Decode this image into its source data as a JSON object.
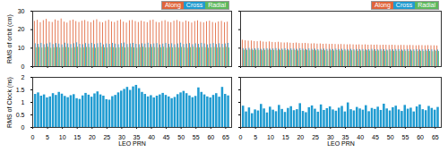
{
  "chart_data": [
    {
      "type": "bar",
      "y_label": "RMS of orbit (cm)",
      "legend": "top-right",
      "tick_labels": "y",
      "xlim": [
        0,
        67
      ],
      "xticks": [
        0,
        5,
        10,
        15,
        20,
        25,
        30,
        35,
        40,
        45,
        50,
        55,
        60,
        65
      ],
      "ylim": [
        0,
        30
      ],
      "yticks": [
        0,
        10,
        20,
        30
      ],
      "x": [
        1,
        2,
        3,
        4,
        5,
        6,
        7,
        8,
        9,
        10,
        11,
        12,
        13,
        14,
        15,
        16,
        17,
        18,
        19,
        20,
        21,
        22,
        23,
        24,
        25,
        26,
        27,
        28,
        29,
        30,
        31,
        32,
        33,
        34,
        35,
        36,
        37,
        38,
        39,
        40,
        41,
        42,
        43,
        44,
        45,
        46,
        47,
        48,
        49,
        50,
        51,
        52,
        53,
        54,
        55,
        56,
        57,
        58,
        59,
        60,
        61,
        62,
        63,
        64,
        65,
        66
      ],
      "series": [
        {
          "name": "Along",
          "color": "#e0643a",
          "values": [
            24.5,
            25.1,
            23.8,
            24.9,
            25.6,
            24.2,
            23.9,
            25.3,
            24.7,
            25.8,
            24.1,
            23.6,
            24.8,
            25.2,
            24.4,
            23.9,
            24.6,
            25.0,
            24.3,
            23.8,
            24.9,
            25.4,
            24.0,
            23.7,
            24.5,
            25.1,
            24.2,
            23.9,
            24.7,
            25.3,
            24.1,
            23.6,
            24.8,
            25.0,
            24.4,
            23.9,
            24.6,
            24.2,
            23.8,
            24.9,
            25.2,
            24.0,
            23.7,
            24.5,
            24.9,
            24.1,
            23.8,
            24.6,
            25.0,
            24.3,
            23.9,
            24.7,
            24.2,
            23.6,
            24.4,
            24.8,
            24.0,
            23.7,
            24.3,
            24.6,
            23.9,
            23.5,
            24.2,
            24.5,
            23.8,
            24.1
          ]
        },
        {
          "name": "Cross",
          "color": "#1f9bd1",
          "values": [
            12.4,
            12.1,
            12.6,
            11.9,
            12.3,
            12.8,
            12.0,
            12.5,
            12.2,
            11.8,
            12.7,
            12.3,
            12.0,
            12.4,
            12.9,
            12.1,
            11.9,
            12.5,
            12.2,
            12.6,
            12.0,
            12.4,
            12.7,
            11.8,
            12.3,
            12.1,
            12.6,
            12.2,
            11.9,
            12.5,
            12.8,
            12.0,
            12.3,
            12.6,
            12.1,
            11.9,
            12.4,
            12.2,
            12.7,
            12.0,
            12.3,
            12.5,
            11.8,
            12.2,
            12.6,
            12.1,
            12.4,
            11.9,
            12.3,
            12.7,
            12.0,
            12.2,
            12.5,
            11.9,
            12.4,
            12.1,
            12.6,
            12.3,
            11.8,
            12.2,
            12.5,
            12.0,
            12.4,
            12.1,
            12.3,
            12.6
          ]
        },
        {
          "name": "Radial",
          "color": "#5cb85c",
          "values": [
            10.2,
            10.4,
            10.1,
            10.3,
            10.5,
            10.0,
            10.2,
            10.4,
            10.1,
            10.3,
            10.4,
            10.2,
            10.0,
            10.3,
            10.5,
            10.1,
            10.2,
            10.4,
            10.3,
            10.1,
            10.0,
            10.3,
            10.5,
            10.2,
            10.1,
            10.4,
            10.3,
            10.0,
            10.2,
            10.5,
            10.1,
            10.3,
            10.4,
            10.2,
            10.0,
            10.3,
            10.5,
            10.1,
            10.2,
            10.4,
            10.3,
            10.1,
            10.2,
            10.5,
            10.0,
            10.4,
            10.2,
            10.3,
            10.1,
            10.4,
            10.2,
            10.0,
            10.3,
            10.5,
            10.1,
            10.2,
            10.4,
            10.3,
            10.0,
            10.2,
            10.4,
            10.1,
            10.3,
            10.2,
            10.5,
            10.1
          ]
        }
      ]
    },
    {
      "type": "bar",
      "legend": "top-right",
      "tick_labels": false,
      "xlim": [
        0,
        67
      ],
      "xticks": [
        0,
        5,
        10,
        15,
        20,
        25,
        30,
        35,
        40,
        45,
        50,
        55,
        60,
        65
      ],
      "ylim": [
        0,
        30
      ],
      "yticks": [
        0,
        10,
        20,
        30
      ],
      "x": [
        1,
        2,
        3,
        4,
        5,
        6,
        7,
        8,
        9,
        10,
        11,
        12,
        13,
        14,
        15,
        16,
        17,
        18,
        19,
        20,
        21,
        22,
        23,
        24,
        25,
        26,
        27,
        28,
        29,
        30,
        31,
        32,
        33,
        34,
        35,
        36,
        37,
        38,
        39,
        40,
        41,
        42,
        43,
        44,
        45,
        46,
        47,
        48,
        49,
        50,
        51,
        52,
        53,
        54,
        55,
        56,
        57,
        58,
        59,
        60,
        61,
        62,
        63,
        64,
        65,
        66
      ],
      "series": [
        {
          "name": "Along",
          "color": "#e0643a",
          "values": [
            14.3,
            14.0,
            13.8,
            13.9,
            13.6,
            13.5,
            13.7,
            13.3,
            13.2,
            13.4,
            13.1,
            13.0,
            13.2,
            12.9,
            12.8,
            12.9,
            12.7,
            12.6,
            12.8,
            12.5,
            12.5,
            12.6,
            12.4,
            12.3,
            12.4,
            12.2,
            12.3,
            12.1,
            12.2,
            12.0,
            12.1,
            12.0,
            11.9,
            12.0,
            11.9,
            11.8,
            11.9,
            11.8,
            11.7,
            11.8,
            11.7,
            11.8,
            11.6,
            11.7,
            11.6,
            11.7,
            11.5,
            11.6,
            11.6,
            11.5,
            11.6,
            11.5,
            11.4,
            11.5,
            11.5,
            11.4,
            11.5,
            11.4,
            11.3,
            11.4,
            11.4,
            11.3,
            11.4,
            11.3,
            11.3,
            11.2
          ]
        },
        {
          "name": "Cross",
          "color": "#1f9bd1",
          "values": [
            9.8,
            9.6,
            9.9,
            9.5,
            9.7,
            9.8,
            9.4,
            9.6,
            9.7,
            9.5,
            9.6,
            9.8,
            9.4,
            9.5,
            9.7,
            9.3,
            9.6,
            9.5,
            9.4,
            9.7,
            9.5,
            9.3,
            9.6,
            9.4,
            9.5,
            9.2,
            9.4,
            9.5,
            9.3,
            9.4,
            9.3,
            9.5,
            9.2,
            9.4,
            9.3,
            9.1,
            9.4,
            9.2,
            9.3,
            9.2,
            9.3,
            9.1,
            9.2,
            9.4,
            9.2,
            9.1,
            9.3,
            9.2,
            9.0,
            9.2,
            9.1,
            9.3,
            9.2,
            9.0,
            9.1,
            9.2,
            9.0,
            9.1,
            9.2,
            9.0,
            9.1,
            9.0,
            9.2,
            9.1,
            8.9,
            9.0
          ]
        },
        {
          "name": "Radial",
          "color": "#5cb85c",
          "values": [
            8.9,
            8.8,
            9.0,
            8.7,
            8.9,
            8.8,
            8.6,
            8.8,
            8.9,
            8.7,
            8.8,
            8.6,
            8.7,
            8.9,
            8.7,
            8.6,
            8.8,
            8.7,
            8.5,
            8.7,
            8.6,
            8.8,
            8.5,
            8.7,
            8.6,
            8.5,
            8.7,
            8.6,
            8.4,
            8.6,
            8.5,
            8.7,
            8.4,
            8.6,
            8.5,
            8.4,
            8.6,
            8.5,
            8.3,
            8.5,
            8.4,
            8.6,
            8.4,
            8.5,
            8.3,
            8.5,
            8.4,
            8.3,
            8.5,
            8.4,
            8.3,
            8.4,
            8.2,
            8.4,
            8.3,
            8.2,
            8.4,
            8.3,
            8.2,
            8.3,
            8.2,
            8.3,
            8.2,
            8.1,
            8.3,
            8.2
          ]
        }
      ]
    },
    {
      "type": "bar",
      "x_label": "LEO PRN",
      "y_label": "RMS of Clock (ns)",
      "color": "#1f9bd1",
      "xlim": [
        0,
        67
      ],
      "xticks": [
        0,
        5,
        10,
        15,
        20,
        25,
        30,
        35,
        40,
        45,
        50,
        55,
        60,
        65
      ],
      "ylim": [
        0,
        2
      ],
      "yticks": [
        0,
        0.5,
        1,
        1.5,
        2
      ],
      "x": [
        1,
        2,
        3,
        4,
        5,
        6,
        7,
        8,
        9,
        10,
        11,
        12,
        13,
        14,
        15,
        16,
        17,
        18,
        19,
        20,
        21,
        22,
        23,
        24,
        25,
        26,
        27,
        28,
        29,
        30,
        31,
        32,
        33,
        34,
        35,
        36,
        37,
        38,
        39,
        40,
        41,
        42,
        43,
        44,
        45,
        46,
        47,
        48,
        49,
        50,
        51,
        52,
        53,
        54,
        55,
        56,
        57,
        58,
        59,
        60,
        61,
        62,
        63,
        64,
        65,
        66
      ],
      "values": [
        1.32,
        1.38,
        1.25,
        1.3,
        1.18,
        1.22,
        1.35,
        1.28,
        1.4,
        1.33,
        1.24,
        1.19,
        1.27,
        1.31,
        1.15,
        1.12,
        1.26,
        1.36,
        1.29,
        1.21,
        1.34,
        1.42,
        1.3,
        1.25,
        1.11,
        1.09,
        1.23,
        1.28,
        1.38,
        1.45,
        1.52,
        1.6,
        1.48,
        1.62,
        1.68,
        1.55,
        1.4,
        1.32,
        1.22,
        1.27,
        1.18,
        1.25,
        1.3,
        1.36,
        1.28,
        1.22,
        1.15,
        1.2,
        1.31,
        1.38,
        1.44,
        1.35,
        1.26,
        1.19,
        1.24,
        1.58,
        1.4,
        1.3,
        1.22,
        1.18,
        1.28,
        1.35,
        1.21,
        1.6,
        1.32,
        1.26
      ]
    },
    {
      "type": "bar",
      "x_label": "LEO PRN",
      "tick_labels": "x",
      "color": "#1f9bd1",
      "xlim": [
        0,
        67
      ],
      "xticks": [
        0,
        5,
        10,
        15,
        20,
        25,
        30,
        35,
        40,
        45,
        50,
        55,
        60,
        65
      ],
      "ylim": [
        0,
        2
      ],
      "yticks": [
        0,
        0.5,
        1,
        1.5,
        2
      ],
      "x": [
        1,
        2,
        3,
        4,
        5,
        6,
        7,
        8,
        9,
        10,
        11,
        12,
        13,
        14,
        15,
        16,
        17,
        18,
        19,
        20,
        21,
        22,
        23,
        24,
        25,
        26,
        27,
        28,
        29,
        30,
        31,
        32,
        33,
        34,
        35,
        36,
        37,
        38,
        39,
        40,
        41,
        42,
        43,
        44,
        45,
        46,
        47,
        48,
        49,
        50,
        51,
        52,
        53,
        54,
        55,
        56,
        57,
        58,
        59,
        60,
        61,
        62,
        63,
        64,
        65,
        66
      ],
      "values": [
        0.85,
        0.62,
        0.78,
        0.55,
        0.7,
        0.66,
        0.92,
        0.74,
        0.58,
        0.81,
        0.69,
        0.63,
        0.88,
        0.72,
        0.6,
        0.76,
        0.83,
        0.67,
        0.71,
        0.95,
        0.64,
        0.59,
        0.79,
        0.86,
        0.73,
        0.61,
        0.9,
        0.68,
        0.75,
        0.82,
        0.7,
        0.65,
        0.77,
        0.84,
        0.62,
        0.98,
        0.71,
        0.66,
        0.8,
        0.74,
        0.69,
        0.87,
        0.63,
        0.76,
        0.72,
        0.81,
        0.68,
        0.93,
        0.74,
        0.66,
        0.79,
        0.85,
        0.7,
        0.64,
        0.88,
        0.73,
        0.77,
        0.62,
        0.82,
        0.9,
        0.71,
        0.67,
        0.84,
        0.76,
        0.69,
        0.8
      ]
    }
  ]
}
